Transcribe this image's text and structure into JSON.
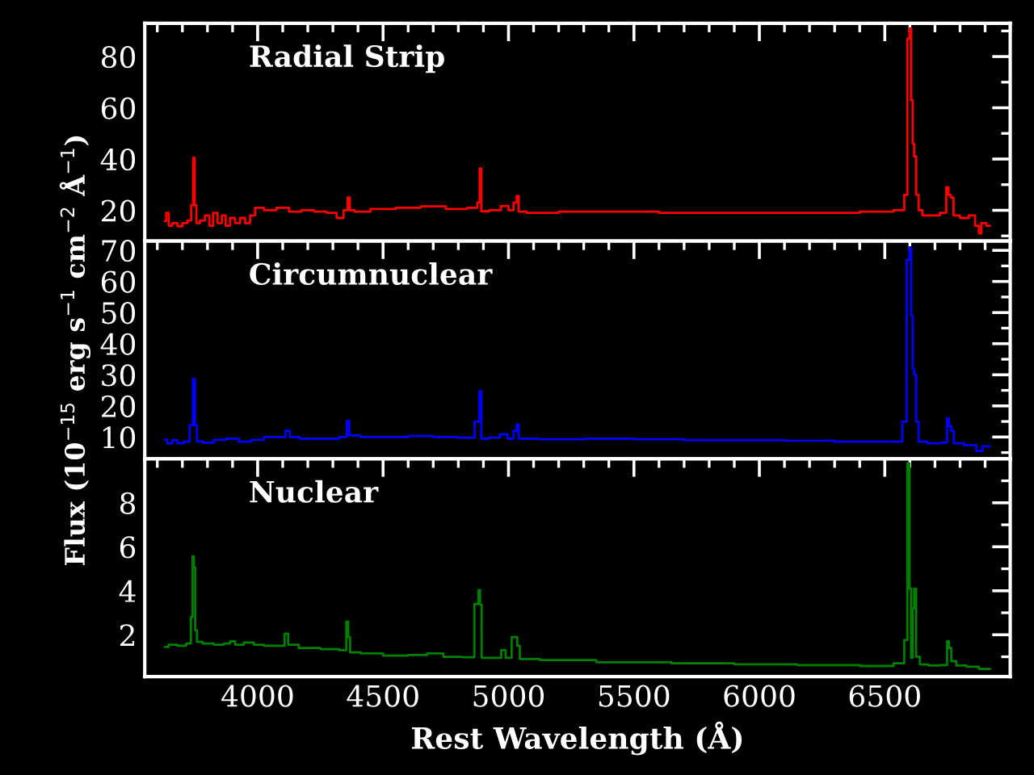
{
  "chart_data": [
    {
      "type": "step",
      "title": "Radial Strip",
      "xlim": [
        3550,
        7000
      ],
      "xticks": [
        4000,
        4500,
        5000,
        5500,
        6000,
        6500
      ],
      "ylim": [
        8,
        93
      ],
      "yticks": [
        20,
        40,
        60,
        80
      ],
      "tick_labels": "y",
      "grid": false,
      "x": [
        3630,
        3641,
        3650,
        3670,
        3690,
        3710,
        3730,
        3740,
        3746,
        3752,
        3760,
        3780,
        3800,
        3815,
        3830,
        3850,
        3865,
        3880,
        3900,
        3920,
        3940,
        3960,
        3980,
        4000,
        4050,
        4100,
        4150,
        4200,
        4250,
        4300,
        4330,
        4355,
        4363,
        4372,
        4400,
        4500,
        4600,
        4700,
        4800,
        4870,
        4882,
        4888,
        4895,
        4950,
        4990,
        5010,
        5030,
        5036,
        5045,
        5100,
        5300,
        5500,
        5700,
        5900,
        6100,
        6300,
        6500,
        6570,
        6585,
        6595,
        6602,
        6608,
        6614,
        6620,
        6630,
        6640,
        6660,
        6700,
        6740,
        6750,
        6758,
        6768,
        6780,
        6820,
        6850,
        6870,
        6880,
        6890,
        6920
      ],
      "series": [
        {
          "color": "#ff0000",
          "values": [
            15.8,
            19,
            14,
            15,
            13.7,
            15,
            16,
            22,
            40.5,
            22,
            15,
            16,
            18,
            14,
            19,
            15,
            18,
            14,
            17,
            15,
            17,
            15,
            18,
            21,
            20,
            21,
            19.5,
            20,
            19.5,
            19,
            17,
            20,
            25,
            20,
            19.5,
            20.5,
            21,
            21.5,
            20.5,
            21,
            23,
            36.3,
            19.6,
            20,
            21.7,
            20,
            23,
            25.6,
            19.5,
            19,
            19.5,
            19.5,
            19,
            19,
            19,
            19,
            19.5,
            20,
            26,
            87,
            91,
            63,
            46,
            41,
            26,
            20,
            18,
            18,
            19,
            29,
            26,
            25,
            18,
            17,
            18,
            14,
            11,
            15,
            14
          ]
        }
      ]
    },
    {
      "type": "step",
      "title": "Circumnuclear",
      "ylabel": "Flux (10$^{−15}$ erg s$^{−1}$ cm$^{−2}$ Å$^{−1}$)",
      "xlim": [
        3550,
        7000
      ],
      "xticks": [
        4000,
        4500,
        5000,
        5500,
        6000,
        6500
      ],
      "ylim": [
        3,
        73
      ],
      "yticks": [
        10,
        20,
        30,
        40,
        50,
        60,
        70
      ],
      "tick_labels": "y",
      "grid": false,
      "x": [
        3630,
        3650,
        3670,
        3690,
        3720,
        3738,
        3746,
        3754,
        3762,
        3800,
        3850,
        3900,
        3950,
        4000,
        4050,
        4100,
        4122,
        4135,
        4200,
        4300,
        4350,
        4361,
        4370,
        4450,
        4550,
        4650,
        4750,
        4850,
        4880,
        4888,
        4895,
        4950,
        4982,
        5010,
        5030,
        5036,
        5045,
        5200,
        5400,
        5600,
        5800,
        6000,
        6200,
        6400,
        6560,
        6580,
        6595,
        6602,
        6608,
        6614,
        6620,
        6630,
        6640,
        6700,
        6745,
        6752,
        6760,
        6770,
        6780,
        6850,
        6880,
        6900,
        6920
      ],
      "series": [
        {
          "color": "#0000ff",
          "values": [
            9.1,
            7.9,
            9,
            8,
            8.5,
            13.8,
            28.6,
            13.8,
            8.6,
            8.2,
            9.1,
            9.5,
            8.5,
            9.1,
            10,
            10,
            12,
            10,
            9.5,
            9.5,
            10,
            15.2,
            10.5,
            10,
            10,
            10.3,
            10,
            9.8,
            15,
            24.7,
            9.5,
            9.8,
            10.9,
            9.5,
            12,
            14,
            9.5,
            9.3,
            9.5,
            9.3,
            9,
            9,
            8.8,
            8.5,
            8.5,
            15,
            67,
            71,
            49,
            32,
            30,
            15,
            8.5,
            8,
            8.2,
            16,
            13.5,
            12,
            8,
            7.4,
            5.5,
            7,
            7
          ]
        }
      ]
    },
    {
      "type": "step",
      "title": "Nuclear",
      "xlabel": "Rest Wavelength (Å)",
      "xlim": [
        3550,
        7000
      ],
      "xticks": [
        4000,
        4500,
        5000,
        5500,
        6000,
        6500
      ],
      "ylim": [
        0.1,
        10
      ],
      "yticks": [
        2,
        4,
        6,
        8
      ],
      "grid": false,
      "x": [
        3630,
        3660,
        3700,
        3730,
        3738,
        3743,
        3748,
        3754,
        3762,
        3800,
        3850,
        3880,
        3900,
        3920,
        3970,
        4000,
        4050,
        4100,
        4115,
        4128,
        4200,
        4300,
        4350,
        4357,
        4365,
        4372,
        4450,
        4550,
        4650,
        4700,
        4780,
        4850,
        4878,
        4883,
        4890,
        4896,
        4960,
        4982,
        4995,
        5030,
        5040,
        5050,
        5200,
        5500,
        5800,
        6000,
        6300,
        6500,
        6570,
        6585,
        6595,
        6602,
        6608,
        6614,
        6620,
        6630,
        6650,
        6700,
        6745,
        6752,
        6760,
        6770,
        6800,
        6850,
        6900,
        6920
      ],
      "series": [
        {
          "color": "#008000",
          "values": [
            1.45,
            1.55,
            1.5,
            1.6,
            2.8,
            5.57,
            5.07,
            2.2,
            1.68,
            1.6,
            1.55,
            1.6,
            1.7,
            1.55,
            1.65,
            1.55,
            1.5,
            1.5,
            2.05,
            1.55,
            1.4,
            1.35,
            1.3,
            2.6,
            1.9,
            1.2,
            1.15,
            1.05,
            1.08,
            1.15,
            1.0,
            0.98,
            3.4,
            4.03,
            3.37,
            0.95,
            0.95,
            1.3,
            0.95,
            1.9,
            1.5,
            0.9,
            0.85,
            0.75,
            0.7,
            0.66,
            0.62,
            0.58,
            0.7,
            1.76,
            9.8,
            4.1,
            0.95,
            3.2,
            4.1,
            1.0,
            0.65,
            0.6,
            0.62,
            1.7,
            1.4,
            0.8,
            0.6,
            0.55,
            0.45,
            0.45
          ]
        }
      ]
    }
  ]
}
